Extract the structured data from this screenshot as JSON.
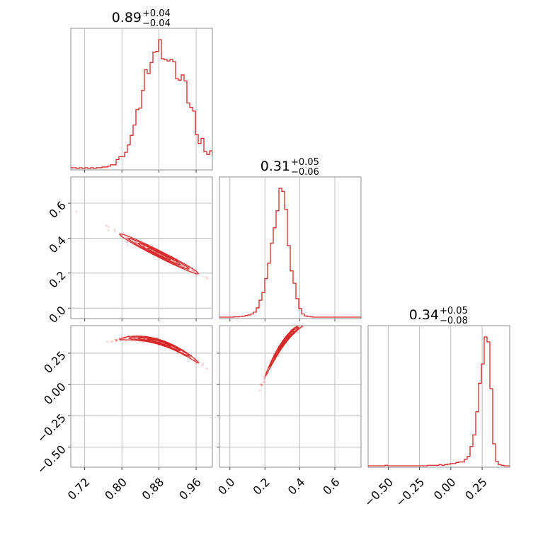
{
  "chart_data": {
    "type": "corner",
    "color": "#d62728",
    "parameters": [
      {
        "title_value": "0.89",
        "title_plus": "+0.04",
        "title_minus": "−0.04",
        "range": [
          0.69,
          0.995
        ],
        "ticks": [
          0.72,
          0.8,
          0.88,
          0.96
        ],
        "tick_labels": [
          "0.72",
          "0.80",
          "0.88",
          "0.96"
        ]
      },
      {
        "title_value": "0.31",
        "title_plus": "+0.05",
        "title_minus": "−0.06",
        "range": [
          -0.06,
          0.75
        ],
        "ticks": [
          0.0,
          0.2,
          0.4,
          0.6
        ],
        "tick_labels": [
          "0.0",
          "0.2",
          "0.4",
          "0.6"
        ]
      },
      {
        "title_value": "0.34",
        "title_plus": "+0.05",
        "title_minus": "−0.08",
        "range": [
          -0.66,
          0.47
        ],
        "ticks": [
          -0.5,
          -0.25,
          0.0,
          0.25
        ],
        "tick_labels": [
          "−0.50",
          "−0.25",
          "0.00",
          "0.25"
        ]
      }
    ],
    "histograms": [
      {
        "param": 0,
        "bin_edges_start": 0.69,
        "bin_width": 0.0061,
        "counts": [
          1,
          1,
          0,
          1,
          0,
          1,
          0,
          1,
          0,
          1,
          1,
          2,
          2,
          3,
          5,
          5,
          12,
          16,
          16,
          22,
          32,
          45,
          59,
          80,
          82,
          106,
          134,
          129,
          144,
          158,
          159,
          175,
          149,
          148,
          146,
          148,
          145,
          122,
          120,
          127,
          119,
          89,
          83,
          78,
          46,
          34,
          41,
          23,
          19,
          24,
          17
        ]
      },
      {
        "param": 1,
        "bin_edges_start": -0.06,
        "bin_width": 0.0162,
        "counts": [
          0,
          0,
          0,
          0,
          0,
          1,
          1,
          2,
          3,
          5,
          7,
          10,
          16,
          30,
          55,
          80,
          125,
          175,
          240,
          290,
          345,
          418,
          408,
          350,
          232,
          150,
          110,
          60,
          28,
          10,
          4,
          2,
          1,
          0,
          0,
          0,
          0,
          0,
          0,
          0,
          0,
          0,
          0,
          0,
          0,
          0,
          0,
          0,
          0,
          0
        ]
      },
      {
        "param": 2,
        "bin_edges_start": -0.66,
        "bin_width": 0.0226,
        "counts": [
          0,
          0,
          0,
          0,
          0,
          0,
          1,
          0,
          0,
          0,
          0,
          0,
          0,
          0,
          0,
          0,
          0,
          0,
          0,
          0,
          0,
          1,
          1,
          1,
          1,
          2,
          1,
          2,
          3,
          4,
          4,
          6,
          7,
          7,
          12,
          17,
          35,
          56,
          98,
          150,
          185,
          234,
          225,
          140,
          40,
          8,
          2,
          1,
          0,
          0
        ]
      }
    ],
    "pairs": [
      {
        "x_param": 0,
        "y_param": 1,
        "center": [
          0.88,
          0.31
        ],
        "spread_x": 0.04,
        "correlation": -0.98,
        "curve": "linear",
        "slope": -1.33
      },
      {
        "x_param": 0,
        "y_param": 2,
        "center": [
          0.88,
          0.34
        ],
        "spread_x": 0.04,
        "correlation": -0.95,
        "curve": "quadratic"
      },
      {
        "x_param": 1,
        "y_param": 2,
        "center": [
          0.31,
          0.34
        ],
        "spread_x": 0.05,
        "correlation": 0.95,
        "curve": "concave"
      }
    ]
  }
}
